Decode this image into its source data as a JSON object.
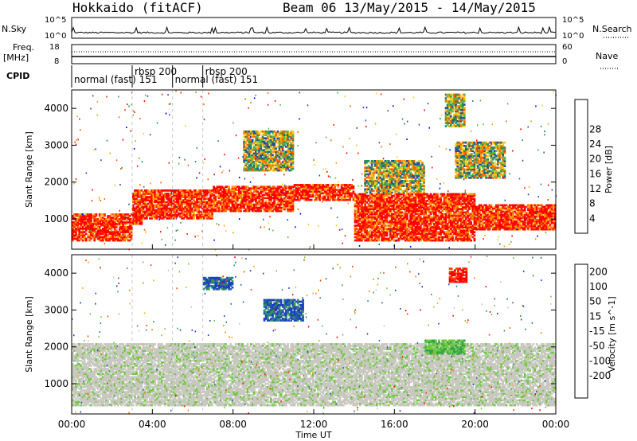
{
  "header": {
    "title_left": "Hokkaido (fitACF)",
    "title_right": "Beam 06  13/May/2015 - 14/May/2015"
  },
  "nsky_panel": {
    "left_label": "N.Sky",
    "left_ticks": [
      "10^5",
      "10^0"
    ],
    "right_ticks": [
      "10^5",
      "10^0"
    ],
    "right_label": "N.Search"
  },
  "freq_panel": {
    "left_label_1": "Freq.",
    "left_label_2": "[MHz]",
    "left_ticks": [
      "18",
      "8"
    ],
    "right_ticks": [
      "60",
      "0"
    ],
    "right_label": "Nave"
  },
  "cpid_panel": {
    "label": "CPID",
    "segments": [
      {
        "start_h": 0,
        "text": "normal (fast) 151"
      },
      {
        "start_h": 3.0,
        "text": "rbsp 200"
      },
      {
        "start_h": 5.0,
        "text": "normal (fast) 151"
      },
      {
        "start_h": 6.5,
        "text": "rbsp 200"
      }
    ]
  },
  "colors": {
    "power": [
      "#0000ff",
      "#1f4fa0",
      "#2e8b57",
      "#55b848",
      "#f2d020",
      "#ffa000",
      "#ff6000",
      "#ff2000",
      "#ff0000"
    ],
    "velocity": [
      "#1f3fc0",
      "#2e6e9e",
      "#2e9e4e",
      "#70c840",
      "#c8c8c0",
      "#f2b020",
      "#ff8000",
      "#ff4000",
      "#ff0000"
    ]
  },
  "chart_data": [
    {
      "type": "heatmap",
      "title": "",
      "xlabel": "",
      "ylabel": "Slant Range [km]",
      "xlim_hours": [
        0,
        24
      ],
      "ylim_km": [
        180,
        4500
      ],
      "y_ticks": [
        "1000",
        "2000",
        "3000",
        "4000"
      ],
      "colorbar_label": "Power [dB]",
      "colorbar_ticks": [
        "4",
        "8",
        "12",
        "16",
        "20",
        "24",
        "28"
      ],
      "grid": false,
      "echo_regions": [
        {
          "t0": 0.0,
          "t1": 3.0,
          "r0": 400,
          "r1": 900,
          "level": "high"
        },
        {
          "t0": 0.0,
          "t1": 3.5,
          "r0": 850,
          "r1": 1150,
          "level": "high"
        },
        {
          "t0": 3.0,
          "t1": 7.0,
          "r0": 1000,
          "r1": 1800,
          "level": "high"
        },
        {
          "t0": 7.0,
          "t1": 11.0,
          "r0": 1200,
          "r1": 1900,
          "level": "high"
        },
        {
          "t0": 11.0,
          "t1": 14.0,
          "r0": 1500,
          "r1": 1950,
          "level": "high"
        },
        {
          "t0": 14.0,
          "t1": 20.0,
          "r0": 400,
          "r1": 1700,
          "level": "high"
        },
        {
          "t0": 20.0,
          "t1": 24.0,
          "r0": 700,
          "r1": 1400,
          "level": "high"
        },
        {
          "t0": 8.5,
          "t1": 11.0,
          "r0": 2300,
          "r1": 3400,
          "level": "mid"
        },
        {
          "t0": 14.5,
          "t1": 17.5,
          "r0": 1700,
          "r1": 2600,
          "level": "mid"
        },
        {
          "t0": 19.0,
          "t1": 21.5,
          "r0": 2100,
          "r1": 3100,
          "level": "mid"
        },
        {
          "t0": 18.5,
          "t1": 19.5,
          "r0": 3500,
          "r1": 4400,
          "level": "mid"
        }
      ]
    },
    {
      "type": "heatmap",
      "title": "",
      "xlabel": "Time UT",
      "ylabel": "Slant Range [km]",
      "xlim_hours": [
        0,
        24
      ],
      "ylim_km": [
        180,
        4500
      ],
      "y_ticks": [
        "1000",
        "2000",
        "3000",
        "4000"
      ],
      "x_ticks": [
        "00:00",
        "04:00",
        "08:00",
        "12:00",
        "16:00",
        "20:00",
        "00:00"
      ],
      "colorbar_label": "Velocity [m s^-1]",
      "colorbar_ticks": [
        "200",
        "100",
        "50",
        "15",
        "-15",
        "-50",
        "-100",
        "-200"
      ],
      "grid": false,
      "echo_regions": [
        {
          "t0": 0.0,
          "t1": 24.0,
          "r0": 400,
          "r1": 2100,
          "level": "ground"
        },
        {
          "t0": 6.5,
          "t1": 8.0,
          "r0": 3550,
          "r1": 3900,
          "level": "positive"
        },
        {
          "t0": 9.5,
          "t1": 11.5,
          "r0": 2700,
          "r1": 3300,
          "level": "positive"
        },
        {
          "t0": 18.7,
          "t1": 19.6,
          "r0": 3750,
          "r1": 4150,
          "level": "negative"
        },
        {
          "t0": 17.5,
          "t1": 19.5,
          "r0": 1800,
          "r1": 2200,
          "level": "low-positive"
        }
      ]
    }
  ]
}
